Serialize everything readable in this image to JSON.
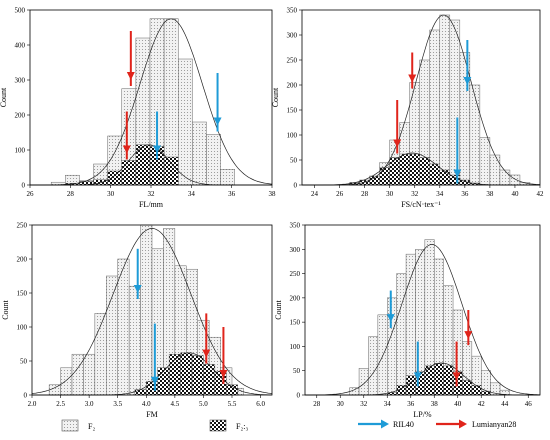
{
  "colors": {
    "blue": "#1E9BD7",
    "red": "#E0241B",
    "bar_f2_fill": "#ececec",
    "bar_f23_fill": "#1a1a1a"
  },
  "legend": {
    "f2_label": "F₂",
    "f23_label": "F₂:₃",
    "ril40_label": "RIL40",
    "lumianyan28_label": "Lumianyan28"
  },
  "chart_data": [
    {
      "type": "bar",
      "xlabel": "FL/mm",
      "ylabel": "Count",
      "xlim": [
        26,
        38
      ],
      "ylim": [
        0,
        500
      ],
      "xticks": [
        26,
        28,
        30,
        32,
        34,
        36,
        38
      ],
      "yticks": [
        0,
        100,
        200,
        300,
        400,
        500
      ],
      "bin_width": 0.7,
      "series": [
        {
          "key": "F2",
          "x": [
            27.4,
            28.1,
            28.8,
            29.5,
            30.2,
            30.9,
            31.6,
            32.3,
            33.0,
            33.7,
            34.4,
            35.1,
            35.8
          ],
          "values": [
            8,
            28,
            12,
            60,
            140,
            275,
            420,
            475,
            475,
            360,
            180,
            145,
            45
          ]
        },
        {
          "key": "F23",
          "x": [
            28.1,
            28.8,
            29.5,
            30.2,
            30.9,
            31.6,
            32.3,
            33.0
          ],
          "values": [
            5,
            10,
            15,
            40,
            70,
            115,
            110,
            80
          ]
        }
      ],
      "curves": [
        {
          "key": "F2",
          "mean": 33.0,
          "sd": 1.55,
          "peak": 475
        },
        {
          "key": "F23",
          "mean": 31.9,
          "sd": 1.0,
          "peak": 115
        }
      ],
      "arrows": [
        {
          "color": "red",
          "x": 31.0,
          "from": 440,
          "to": 300
        },
        {
          "color": "red",
          "x": 30.8,
          "from": 210,
          "to": 90
        },
        {
          "color": "blue",
          "x": 32.3,
          "from": 210,
          "to": 90
        },
        {
          "color": "blue",
          "x": 35.3,
          "from": 320,
          "to": 170
        }
      ]
    },
    {
      "type": "bar",
      "xlabel": "FS/cN·tex⁻¹",
      "ylabel": "Count",
      "xlim": [
        23,
        42
      ],
      "ylim": [
        0,
        350
      ],
      "xticks": [
        24,
        26,
        28,
        30,
        32,
        34,
        36,
        38,
        40,
        42
      ],
      "yticks": [
        0,
        50,
        100,
        150,
        200,
        250,
        300,
        350
      ],
      "bin_width": 0.8,
      "series": [
        {
          "key": "F2",
          "x": [
            27.2,
            28.0,
            28.8,
            29.6,
            30.4,
            31.2,
            32.0,
            32.8,
            33.6,
            34.4,
            35.2,
            36.0,
            36.8,
            37.6,
            38.4,
            39.2,
            40.0,
            40.8
          ],
          "values": [
            3,
            8,
            15,
            45,
            90,
            125,
            205,
            250,
            310,
            340,
            330,
            265,
            200,
            95,
            60,
            30,
            20,
            5
          ]
        },
        {
          "key": "F23",
          "x": [
            27.2,
            28.0,
            28.8,
            29.6,
            30.4,
            31.2,
            32.0,
            32.8,
            33.6,
            34.4,
            35.2,
            36.0,
            36.8
          ],
          "values": [
            5,
            10,
            18,
            35,
            55,
            62,
            62,
            55,
            42,
            30,
            20,
            10,
            4
          ]
        }
      ],
      "curves": [
        {
          "key": "F2",
          "mean": 34.3,
          "sd": 2.2,
          "peak": 340
        },
        {
          "key": "F23",
          "mean": 31.8,
          "sd": 2.0,
          "peak": 64
        }
      ],
      "arrows": [
        {
          "color": "red",
          "x": 31.8,
          "from": 265,
          "to": 205
        },
        {
          "color": "red",
          "x": 30.6,
          "from": 170,
          "to": 75
        },
        {
          "color": "blue",
          "x": 36.2,
          "from": 290,
          "to": 200
        },
        {
          "color": "blue",
          "x": 35.4,
          "from": 135,
          "to": 15
        }
      ]
    },
    {
      "type": "bar",
      "xlabel": "FM",
      "ylabel": "Count",
      "xlim": [
        2.0,
        6.2
      ],
      "ylim": [
        0,
        250
      ],
      "xticks": [
        2.0,
        2.5,
        3.0,
        3.5,
        4.0,
        4.5,
        5.0,
        5.5,
        6.0
      ],
      "yticks": [
        0,
        50,
        100,
        150,
        200,
        250
      ],
      "bin_width": 0.2,
      "series": [
        {
          "key": "F2",
          "x": [
            2.4,
            2.6,
            2.8,
            3.0,
            3.2,
            3.4,
            3.6,
            3.8,
            4.0,
            4.2,
            4.4,
            4.6,
            4.8,
            5.0,
            5.2,
            5.4,
            5.6
          ],
          "values": [
            15,
            40,
            60,
            60,
            120,
            175,
            200,
            160,
            250,
            215,
            245,
            190,
            185,
            110,
            85,
            40,
            10
          ]
        },
        {
          "key": "F23",
          "x": [
            3.9,
            4.1,
            4.3,
            4.5,
            4.7,
            4.9,
            5.1,
            5.3,
            5.5
          ],
          "values": [
            8,
            20,
            40,
            60,
            62,
            58,
            45,
            35,
            15
          ]
        }
      ],
      "curves": [
        {
          "key": "F2",
          "mean": 4.1,
          "sd": 0.68,
          "peak": 245
        },
        {
          "key": "F23",
          "mean": 4.75,
          "sd": 0.42,
          "peak": 62
        }
      ],
      "arrows": [
        {
          "color": "blue",
          "x": 3.85,
          "from": 215,
          "to": 150
        },
        {
          "color": "blue",
          "x": 4.15,
          "from": 105,
          "to": 15
        },
        {
          "color": "red",
          "x": 5.05,
          "from": 120,
          "to": 55
        },
        {
          "color": "red",
          "x": 5.35,
          "from": 100,
          "to": 25
        }
      ]
    },
    {
      "type": "bar",
      "xlabel": "LP/%",
      "ylabel": "Count",
      "xlim": [
        27,
        47
      ],
      "ylim": [
        0,
        350
      ],
      "xticks": [
        28,
        30,
        32,
        34,
        36,
        38,
        40,
        42,
        44,
        46
      ],
      "yticks": [
        0,
        50,
        100,
        150,
        200,
        250,
        300,
        350
      ],
      "bin_width": 0.8,
      "series": [
        {
          "key": "F2",
          "x": [
            31.2,
            32.0,
            32.8,
            33.6,
            34.4,
            35.2,
            36.0,
            36.8,
            37.6,
            38.4,
            39.2,
            40.0,
            40.8,
            41.6,
            42.4,
            43.2,
            44.0
          ],
          "values": [
            15,
            55,
            120,
            165,
            200,
            250,
            290,
            300,
            320,
            280,
            225,
            175,
            110,
            80,
            50,
            25,
            10
          ]
        },
        {
          "key": "F23",
          "x": [
            34.4,
            35.2,
            36.0,
            36.8,
            37.6,
            38.4,
            39.2,
            40.0,
            40.8,
            41.6,
            42.4
          ],
          "values": [
            5,
            20,
            40,
            48,
            60,
            65,
            60,
            48,
            30,
            20,
            8
          ]
        }
      ],
      "curves": [
        {
          "key": "F2",
          "mean": 37.8,
          "sd": 2.55,
          "peak": 310
        },
        {
          "key": "F23",
          "mean": 38.6,
          "sd": 1.9,
          "peak": 66
        }
      ],
      "arrows": [
        {
          "color": "blue",
          "x": 34.3,
          "from": 215,
          "to": 150
        },
        {
          "color": "blue",
          "x": 36.6,
          "from": 110,
          "to": 30
        },
        {
          "color": "red",
          "x": 40.9,
          "from": 175,
          "to": 115
        },
        {
          "color": "red",
          "x": 39.9,
          "from": 110,
          "to": 30
        }
      ]
    }
  ]
}
